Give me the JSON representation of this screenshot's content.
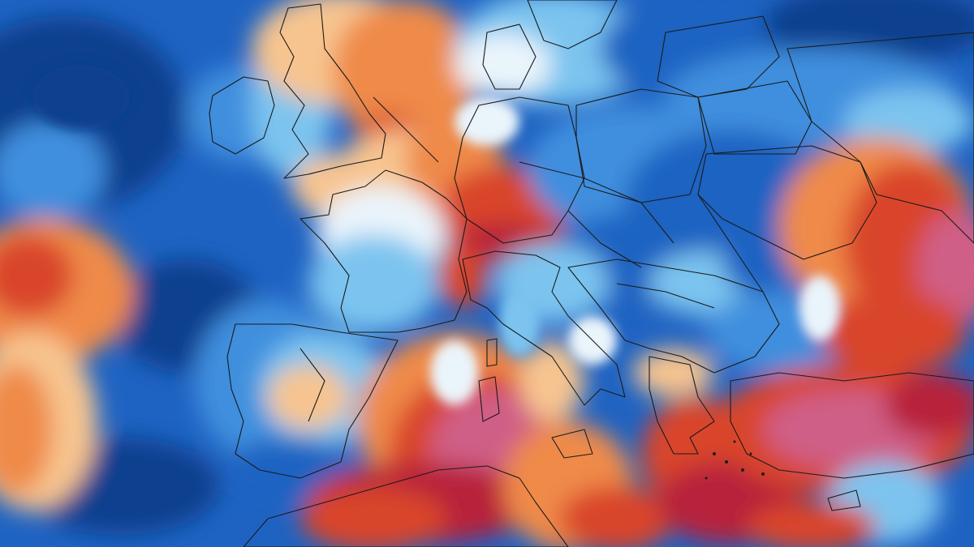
{
  "map": {
    "palette": {
      "deep_cold": "#0d3f8f",
      "cold": "#1f63c2",
      "cool": "#3f8fde",
      "mild_cool": "#7cc4ef",
      "neutral": "#eaf4fb",
      "mild_warm": "#f7c48f",
      "warm": "#ef8a4a",
      "hot": "#d9442b",
      "very_hot": "#b8243a",
      "extreme": "#cf5f86",
      "border_line": "#1b1b1b"
    }
  }
}
